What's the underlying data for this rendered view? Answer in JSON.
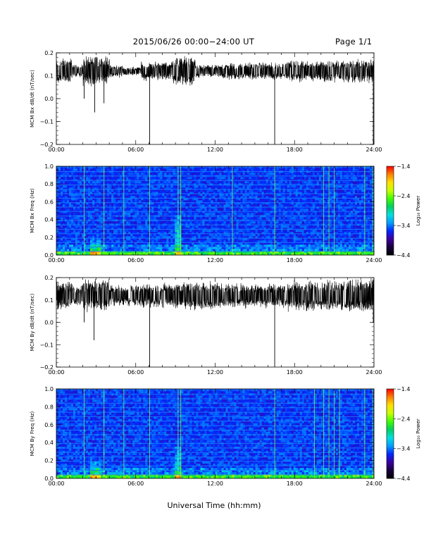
{
  "header": {
    "title": "2015/06/26  00:00−24:00 UT",
    "page": "Page 1/1"
  },
  "x_axis_title": "Universal Time (hh:mm)",
  "colors": {
    "trace": "#000000",
    "colormap": [
      "#000000",
      "#1a0040",
      "#3c00a0",
      "#0028ff",
      "#00a0ff",
      "#00e0e0",
      "#00d060",
      "#40ff00",
      "#c8ff00",
      "#ffe000",
      "#ff8000",
      "#ff0000"
    ]
  },
  "chart_data": [
    {
      "type": "line",
      "ylabel": "MCM Bx dB/dt (nT/sec)",
      "xlim_hours": [
        0,
        24
      ],
      "ylim": [
        -0.2,
        0.2
      ],
      "x_ticks": [
        "00:00",
        "06:00",
        "12:00",
        "18:00",
        "24:00"
      ],
      "y_ticks": [
        "0.2",
        "0.1",
        "0.0",
        "−0.1",
        "−0.2"
      ],
      "baseline": 0.12,
      "noise_envelope_segments": [
        {
          "from": 0,
          "to": 1.2,
          "half_width": 0.06
        },
        {
          "from": 1.2,
          "to": 2.0,
          "half_width": 0.03
        },
        {
          "from": 2.0,
          "to": 4.0,
          "half_width": 0.07
        },
        {
          "from": 4.0,
          "to": 5.0,
          "half_width": 0.03
        },
        {
          "from": 5.0,
          "to": 6.4,
          "half_width": 0.02
        },
        {
          "from": 6.4,
          "to": 8.8,
          "half_width": 0.045
        },
        {
          "from": 8.8,
          "to": 10.5,
          "half_width": 0.07
        },
        {
          "from": 10.5,
          "to": 12.5,
          "half_width": 0.03
        },
        {
          "from": 12.5,
          "to": 14.5,
          "half_width": 0.04
        },
        {
          "from": 14.5,
          "to": 17.5,
          "half_width": 0.04
        },
        {
          "from": 17.5,
          "to": 22.0,
          "half_width": 0.05
        },
        {
          "from": 22.0,
          "to": 24.0,
          "half_width": 0.055
        }
      ],
      "spikes": [
        {
          "t": 2.1,
          "y": 0.0
        },
        {
          "t": 2.9,
          "y": -0.06
        },
        {
          "t": 3.6,
          "y": -0.02
        },
        {
          "t": 7.05,
          "y": -0.2
        },
        {
          "t": 16.5,
          "y": -0.2
        },
        {
          "t": 23.95,
          "y": -0.2
        }
      ]
    },
    {
      "type": "heatmap",
      "ylabel": "MCM Bx Freq (Hz)",
      "xlim_hours": [
        0,
        24
      ],
      "ylim": [
        0.0,
        1.0
      ],
      "x_ticks": [
        "00:00",
        "06:00",
        "12:00",
        "18:00",
        "24:00"
      ],
      "y_ticks": [
        "1.0",
        "0.8",
        "0.6",
        "0.4",
        "0.2",
        "0.0"
      ],
      "colorbar": {
        "label": "Log₁₀ Power",
        "range": [
          -4.4,
          -1.4
        ],
        "ticks": [
          "−1.4",
          "−2.4",
          "−3.4",
          "−4.4"
        ]
      },
      "harmonic_lines_hz": [
        0.04,
        0.09,
        0.14,
        0.19,
        0.24,
        0.29,
        0.34,
        0.39,
        0.44,
        0.49,
        0.54,
        0.59,
        0.64,
        0.69,
        0.74,
        0.79,
        0.84,
        0.89,
        0.94,
        0.99
      ],
      "vertical_streaks_hours": [
        2.1,
        3.6,
        5.1,
        7.05,
        9.2,
        9.4,
        13.3,
        16.5,
        20.2,
        20.6,
        21.0,
        23.3,
        23.9
      ],
      "low_freq_bursts": [
        {
          "t": 3.0,
          "width": 0.8,
          "top_hz": 0.2
        },
        {
          "t": 9.2,
          "width": 0.4,
          "top_hz": 0.45
        }
      ]
    },
    {
      "type": "line",
      "ylabel": "MCM By dB/dt (nT/sec)",
      "xlim_hours": [
        0,
        24
      ],
      "ylim": [
        -0.2,
        0.2
      ],
      "x_ticks": [
        "00:00",
        "06:00",
        "12:00",
        "18:00",
        "24:00"
      ],
      "y_ticks": [
        "0.2",
        "0.1",
        "0.0",
        "−0.1",
        "−0.2"
      ],
      "baseline": 0.12,
      "noise_envelope_segments": [
        {
          "from": 0,
          "to": 1.2,
          "half_width": 0.07
        },
        {
          "from": 1.2,
          "to": 2.0,
          "half_width": 0.05
        },
        {
          "from": 2.0,
          "to": 4.0,
          "half_width": 0.08
        },
        {
          "from": 4.0,
          "to": 6.4,
          "half_width": 0.05
        },
        {
          "from": 6.4,
          "to": 9.0,
          "half_width": 0.06
        },
        {
          "from": 9.0,
          "to": 12.5,
          "half_width": 0.07
        },
        {
          "from": 12.5,
          "to": 17.5,
          "half_width": 0.06
        },
        {
          "from": 17.5,
          "to": 21.5,
          "half_width": 0.075
        },
        {
          "from": 21.5,
          "to": 24.0,
          "half_width": 0.08
        }
      ],
      "spikes": [
        {
          "t": 2.1,
          "y": -0.0
        },
        {
          "t": 2.85,
          "y": -0.08
        },
        {
          "t": 7.05,
          "y": -0.2
        },
        {
          "t": 16.5,
          "y": -0.2
        },
        {
          "t": 23.95,
          "y": 0.0
        }
      ]
    },
    {
      "type": "heatmap",
      "ylabel": "MCM By Freq (Hz)",
      "xlim_hours": [
        0,
        24
      ],
      "ylim": [
        0.0,
        1.0
      ],
      "x_ticks": [
        "00:00",
        "06:00",
        "12:00",
        "18:00",
        "24:00"
      ],
      "y_ticks": [
        "1.0",
        "0.8",
        "0.6",
        "0.4",
        "0.2",
        "0.0"
      ],
      "colorbar": {
        "label": "Log₁₀ Power",
        "range": [
          -4.4,
          -1.4
        ],
        "ticks": [
          "−1.4",
          "−2.4",
          "−3.4",
          "−4.4"
        ]
      },
      "harmonic_lines_hz": [
        0.04,
        0.09,
        0.14,
        0.19,
        0.24,
        0.29,
        0.34,
        0.39,
        0.44,
        0.49,
        0.54,
        0.59,
        0.64,
        0.69,
        0.74,
        0.79,
        0.84,
        0.89,
        0.94,
        0.99
      ],
      "vertical_streaks_hours": [
        2.1,
        3.6,
        5.1,
        7.05,
        9.2,
        9.4,
        16.5,
        19.5,
        20.2,
        20.6,
        21.0,
        21.4,
        23.3,
        23.9
      ],
      "low_freq_bursts": [
        {
          "t": 3.0,
          "width": 0.8,
          "top_hz": 0.2
        },
        {
          "t": 9.2,
          "width": 0.4,
          "top_hz": 0.35
        }
      ]
    }
  ]
}
